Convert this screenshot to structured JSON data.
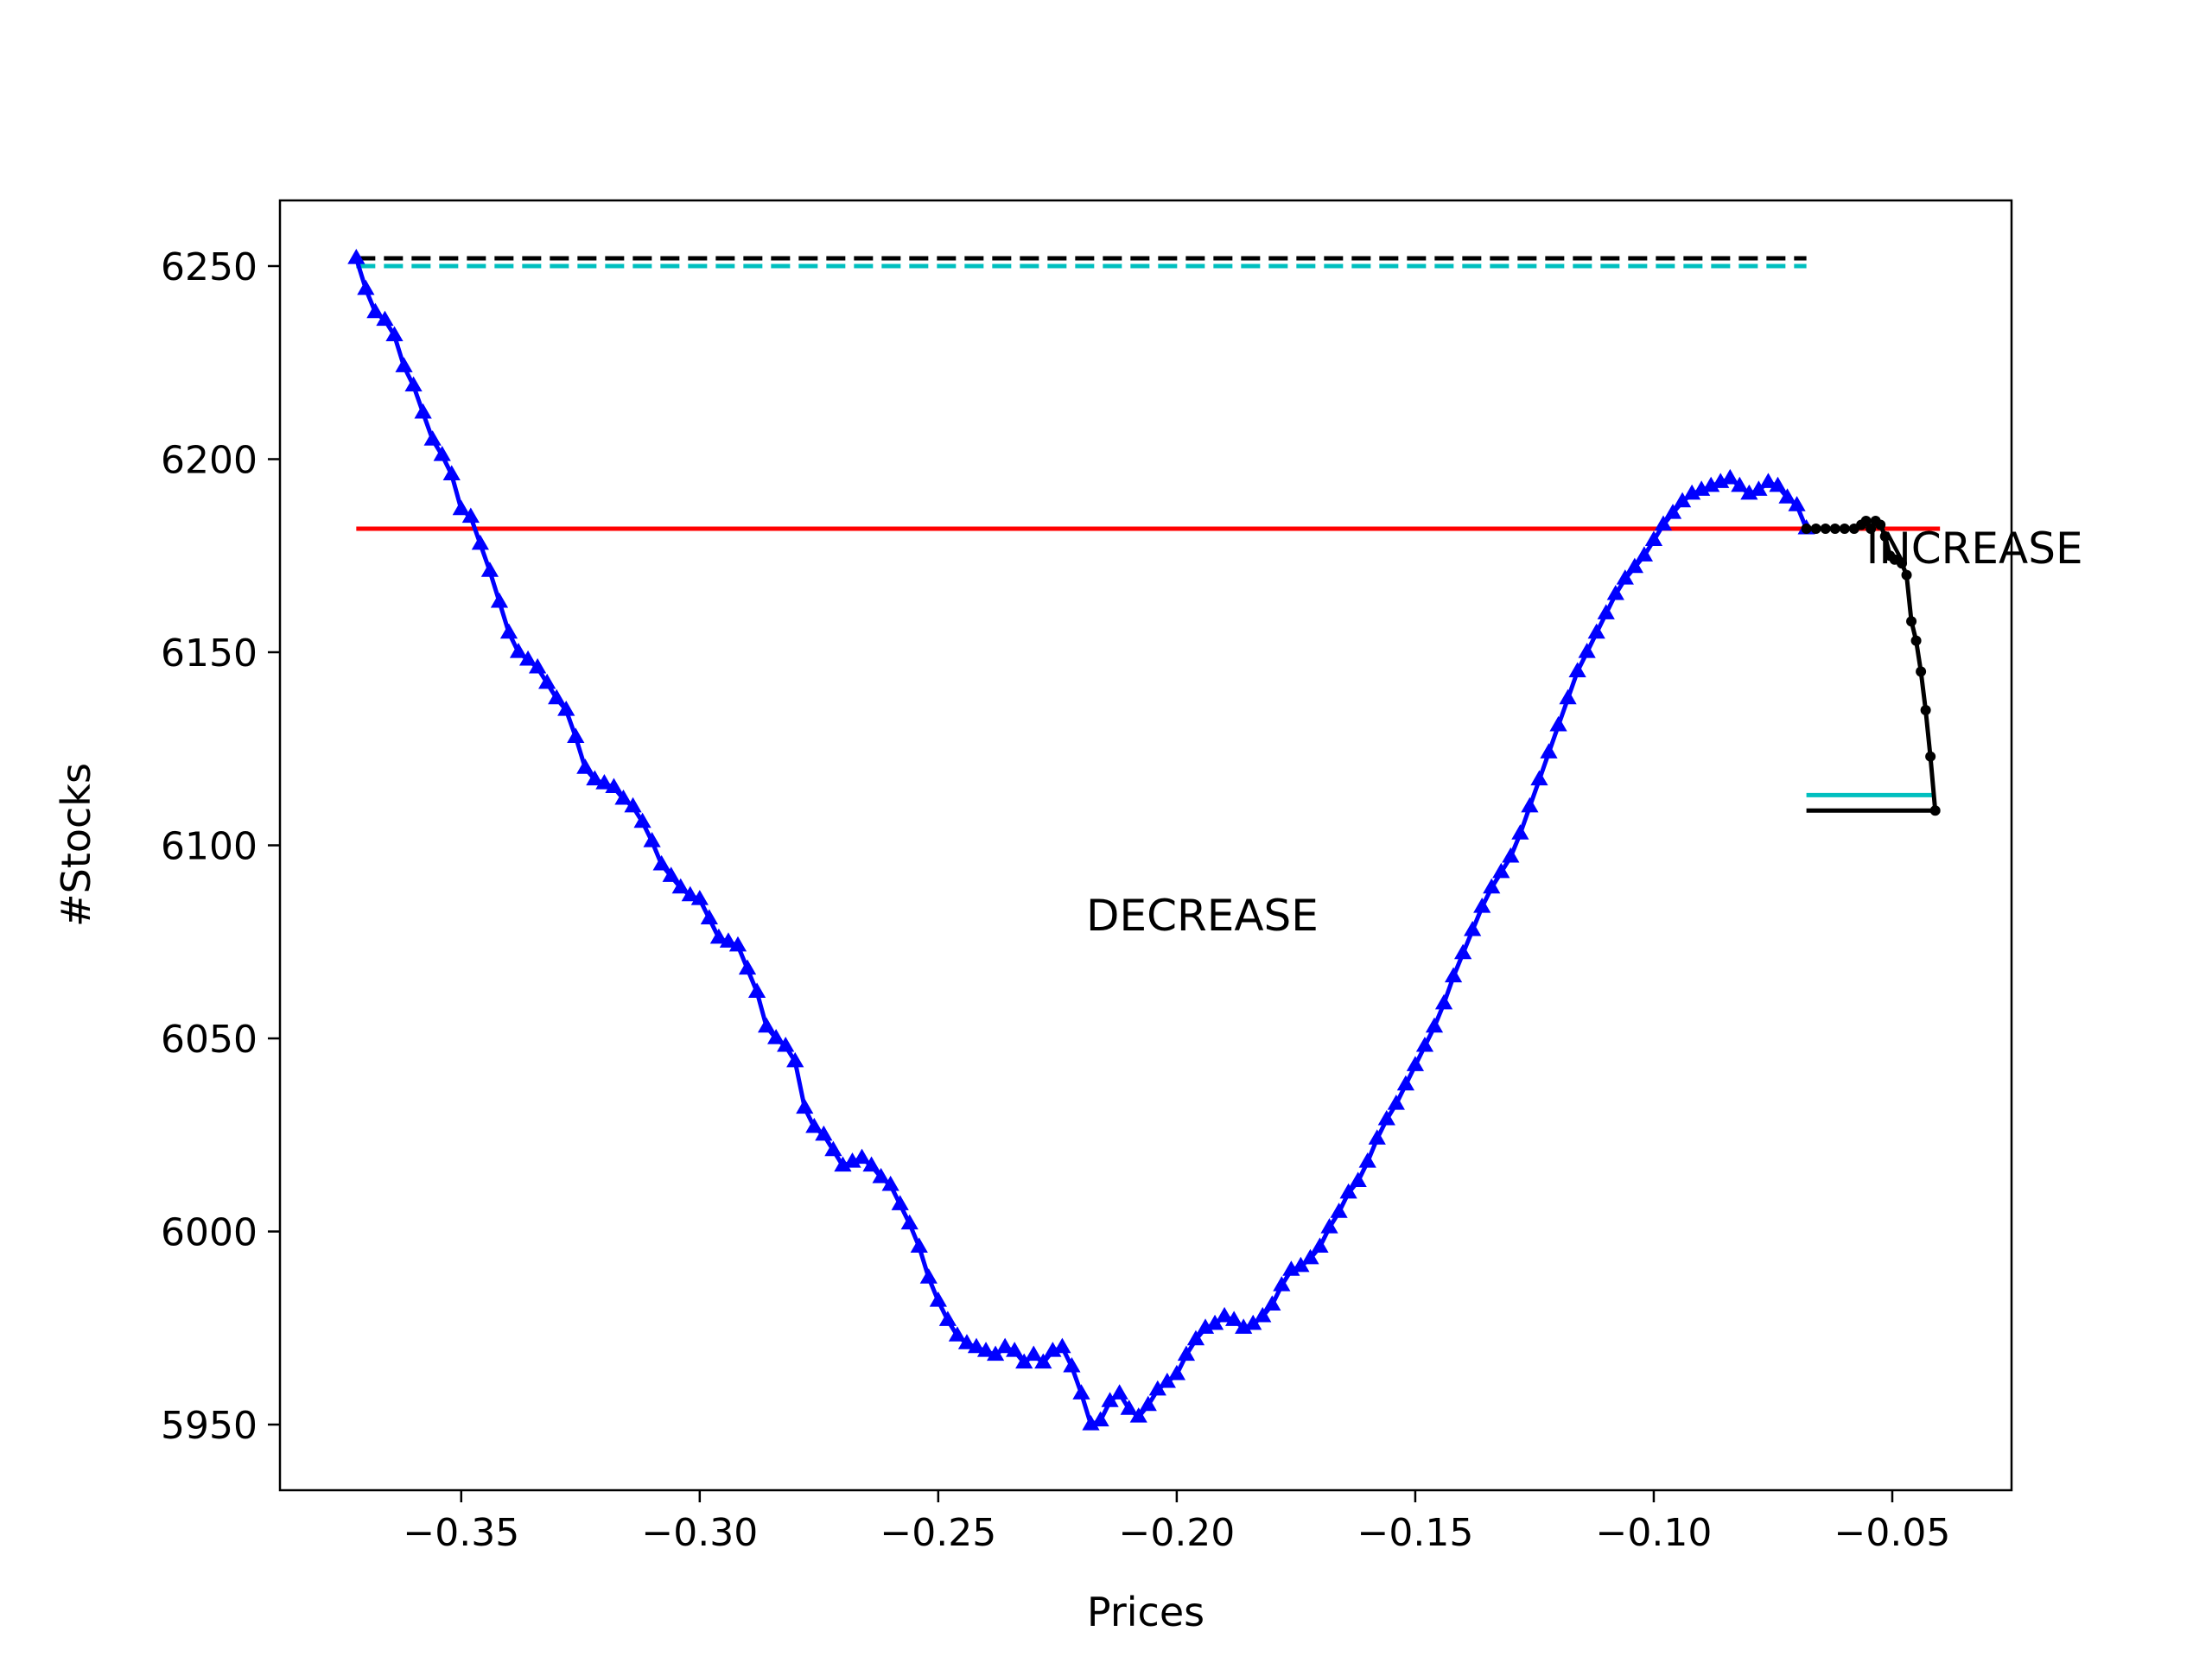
{
  "chart_data": {
    "type": "line",
    "title": "",
    "xlabel": "Prices",
    "ylabel": "#Stocks",
    "xlim": [
      -0.388,
      -0.025
    ],
    "ylim": [
      5933,
      6267
    ],
    "grid": false,
    "x_ticks": [
      {
        "value": -0.35,
        "label": "−0.35"
      },
      {
        "value": -0.3,
        "label": "−0.30"
      },
      {
        "value": -0.25,
        "label": "−0.25"
      },
      {
        "value": -0.2,
        "label": "−0.20"
      },
      {
        "value": -0.15,
        "label": "−0.15"
      },
      {
        "value": -0.1,
        "label": "−0.10"
      },
      {
        "value": -0.05,
        "label": "−0.05"
      }
    ],
    "y_ticks": [
      {
        "value": 5950,
        "label": "5950"
      },
      {
        "value": 6000,
        "label": "6000"
      },
      {
        "value": 6050,
        "label": "6050"
      },
      {
        "value": 6100,
        "label": "6100"
      },
      {
        "value": 6150,
        "label": "6150"
      },
      {
        "value": 6200,
        "label": "6200"
      },
      {
        "value": 6250,
        "label": "6250"
      }
    ],
    "annotations": [
      {
        "text": "DECREASE",
        "x": -0.219,
        "y": 6078
      },
      {
        "text": "INCREASE",
        "x": -0.0555,
        "y": 6173
      }
    ],
    "reference_lines": [
      {
        "kind": "dashed",
        "color": "#000000",
        "x": [
          -0.372,
          -0.068
        ],
        "y": 6252
      },
      {
        "kind": "dashed",
        "color": "#00bfbf",
        "x": [
          -0.372,
          -0.068
        ],
        "y": 6250
      },
      {
        "kind": "solid",
        "color": "#ff0000",
        "x": [
          -0.372,
          -0.04
        ],
        "y": 6182
      },
      {
        "kind": "solid",
        "color": "#00bfbf",
        "x": [
          -0.068,
          -0.041
        ],
        "y": 6113
      },
      {
        "kind": "solid",
        "color": "#000000",
        "x": [
          -0.068,
          -0.04
        ],
        "y": 6109
      }
    ],
    "series": [
      {
        "color": "#0000ff",
        "marker": "triangle",
        "points": [
          [
            -0.372,
            6252
          ],
          [
            -0.37,
            6244
          ],
          [
            -0.368,
            6238
          ],
          [
            -0.366,
            6236
          ],
          [
            -0.364,
            6232
          ],
          [
            -0.362,
            6224
          ],
          [
            -0.36,
            6219
          ],
          [
            -0.358,
            6212
          ],
          [
            -0.356,
            6205
          ],
          [
            -0.354,
            6201
          ],
          [
            -0.352,
            6196
          ],
          [
            -0.35,
            6187
          ],
          [
            -0.348,
            6185
          ],
          [
            -0.346,
            6178
          ],
          [
            -0.344,
            6171
          ],
          [
            -0.342,
            6163
          ],
          [
            -0.34,
            6155
          ],
          [
            -0.338,
            6150
          ],
          [
            -0.336,
            6148
          ],
          [
            -0.334,
            6146
          ],
          [
            -0.332,
            6142
          ],
          [
            -0.33,
            6138
          ],
          [
            -0.328,
            6135
          ],
          [
            -0.326,
            6128
          ],
          [
            -0.324,
            6120
          ],
          [
            -0.322,
            6117
          ],
          [
            -0.32,
            6116
          ],
          [
            -0.318,
            6115
          ],
          [
            -0.316,
            6112
          ],
          [
            -0.314,
            6110
          ],
          [
            -0.312,
            6106
          ],
          [
            -0.31,
            6101
          ],
          [
            -0.308,
            6095
          ],
          [
            -0.306,
            6092
          ],
          [
            -0.304,
            6089
          ],
          [
            -0.302,
            6087
          ],
          [
            -0.3,
            6086
          ],
          [
            -0.298,
            6081
          ],
          [
            -0.296,
            6076
          ],
          [
            -0.294,
            6075
          ],
          [
            -0.292,
            6074
          ],
          [
            -0.29,
            6068
          ],
          [
            -0.288,
            6062
          ],
          [
            -0.286,
            6053
          ],
          [
            -0.284,
            6050
          ],
          [
            -0.282,
            6048
          ],
          [
            -0.28,
            6044
          ],
          [
            -0.278,
            6032
          ],
          [
            -0.276,
            6027
          ],
          [
            -0.274,
            6025
          ],
          [
            -0.272,
            6021
          ],
          [
            -0.27,
            6017
          ],
          [
            -0.268,
            6018
          ],
          [
            -0.266,
            6019
          ],
          [
            -0.264,
            6017
          ],
          [
            -0.262,
            6014
          ],
          [
            -0.26,
            6012
          ],
          [
            -0.258,
            6007
          ],
          [
            -0.256,
            6002
          ],
          [
            -0.254,
            5996
          ],
          [
            -0.252,
            5988
          ],
          [
            -0.25,
            5982
          ],
          [
            -0.248,
            5977
          ],
          [
            -0.246,
            5973
          ],
          [
            -0.244,
            5971
          ],
          [
            -0.242,
            5970
          ],
          [
            -0.24,
            5969
          ],
          [
            -0.238,
            5968
          ],
          [
            -0.236,
            5970
          ],
          [
            -0.234,
            5969
          ],
          [
            -0.232,
            5966
          ],
          [
            -0.23,
            5968
          ],
          [
            -0.228,
            5966
          ],
          [
            -0.226,
            5969
          ],
          [
            -0.224,
            5970
          ],
          [
            -0.222,
            5965
          ],
          [
            -0.22,
            5958
          ],
          [
            -0.218,
            5950
          ],
          [
            -0.216,
            5951
          ],
          [
            -0.214,
            5956
          ],
          [
            -0.212,
            5958
          ],
          [
            -0.21,
            5954
          ],
          [
            -0.208,
            5952
          ],
          [
            -0.206,
            5955
          ],
          [
            -0.204,
            5959
          ],
          [
            -0.202,
            5961
          ],
          [
            -0.2,
            5963
          ],
          [
            -0.198,
            5968
          ],
          [
            -0.196,
            5972
          ],
          [
            -0.194,
            5975
          ],
          [
            -0.192,
            5976
          ],
          [
            -0.19,
            5978
          ],
          [
            -0.188,
            5977
          ],
          [
            -0.186,
            5975
          ],
          [
            -0.184,
            5976
          ],
          [
            -0.182,
            5978
          ],
          [
            -0.18,
            5981
          ],
          [
            -0.178,
            5986
          ],
          [
            -0.176,
            5990
          ],
          [
            -0.174,
            5991
          ],
          [
            -0.172,
            5993
          ],
          [
            -0.17,
            5996
          ],
          [
            -0.168,
            6001
          ],
          [
            -0.166,
            6005
          ],
          [
            -0.164,
            6010
          ],
          [
            -0.162,
            6013
          ],
          [
            -0.16,
            6018
          ],
          [
            -0.158,
            6024
          ],
          [
            -0.156,
            6029
          ],
          [
            -0.154,
            6033
          ],
          [
            -0.152,
            6038
          ],
          [
            -0.15,
            6043
          ],
          [
            -0.148,
            6048
          ],
          [
            -0.146,
            6053
          ],
          [
            -0.144,
            6059
          ],
          [
            -0.142,
            6066
          ],
          [
            -0.14,
            6072
          ],
          [
            -0.138,
            6078
          ],
          [
            -0.136,
            6084
          ],
          [
            -0.134,
            6089
          ],
          [
            -0.132,
            6093
          ],
          [
            -0.13,
            6097
          ],
          [
            -0.128,
            6103
          ],
          [
            -0.126,
            6110
          ],
          [
            -0.124,
            6117
          ],
          [
            -0.122,
            6124
          ],
          [
            -0.12,
            6131
          ],
          [
            -0.118,
            6138
          ],
          [
            -0.116,
            6145
          ],
          [
            -0.114,
            6150
          ],
          [
            -0.112,
            6155
          ],
          [
            -0.11,
            6160
          ],
          [
            -0.108,
            6165
          ],
          [
            -0.106,
            6169
          ],
          [
            -0.104,
            6172
          ],
          [
            -0.102,
            6175
          ],
          [
            -0.1,
            6179
          ],
          [
            -0.098,
            6183
          ],
          [
            -0.096,
            6186
          ],
          [
            -0.094,
            6189
          ],
          [
            -0.092,
            6191
          ],
          [
            -0.09,
            6192
          ],
          [
            -0.088,
            6193
          ],
          [
            -0.086,
            6194
          ],
          [
            -0.084,
            6195
          ],
          [
            -0.082,
            6193
          ],
          [
            -0.08,
            6191
          ],
          [
            -0.078,
            6192
          ],
          [
            -0.076,
            6194
          ],
          [
            -0.074,
            6193
          ],
          [
            -0.072,
            6190
          ],
          [
            -0.07,
            6188
          ],
          [
            -0.068,
            6182
          ]
        ]
      },
      {
        "color": "#000000",
        "marker": "circle",
        "points": [
          [
            -0.068,
            6182
          ],
          [
            -0.066,
            6182
          ],
          [
            -0.064,
            6182
          ],
          [
            -0.062,
            6182
          ],
          [
            -0.06,
            6182
          ],
          [
            -0.058,
            6182
          ],
          [
            -0.0565,
            6183
          ],
          [
            -0.0555,
            6184
          ],
          [
            -0.0545,
            6182
          ],
          [
            -0.0535,
            6184
          ],
          [
            -0.0525,
            6183
          ],
          [
            -0.0515,
            6180
          ],
          [
            -0.0505,
            6175
          ],
          [
            -0.0495,
            6174
          ],
          [
            -0.048,
            6173
          ],
          [
            -0.047,
            6170
          ],
          [
            -0.046,
            6158
          ],
          [
            -0.045,
            6153
          ],
          [
            -0.044,
            6145
          ],
          [
            -0.043,
            6135
          ],
          [
            -0.042,
            6123
          ],
          [
            -0.041,
            6109
          ]
        ]
      }
    ]
  }
}
